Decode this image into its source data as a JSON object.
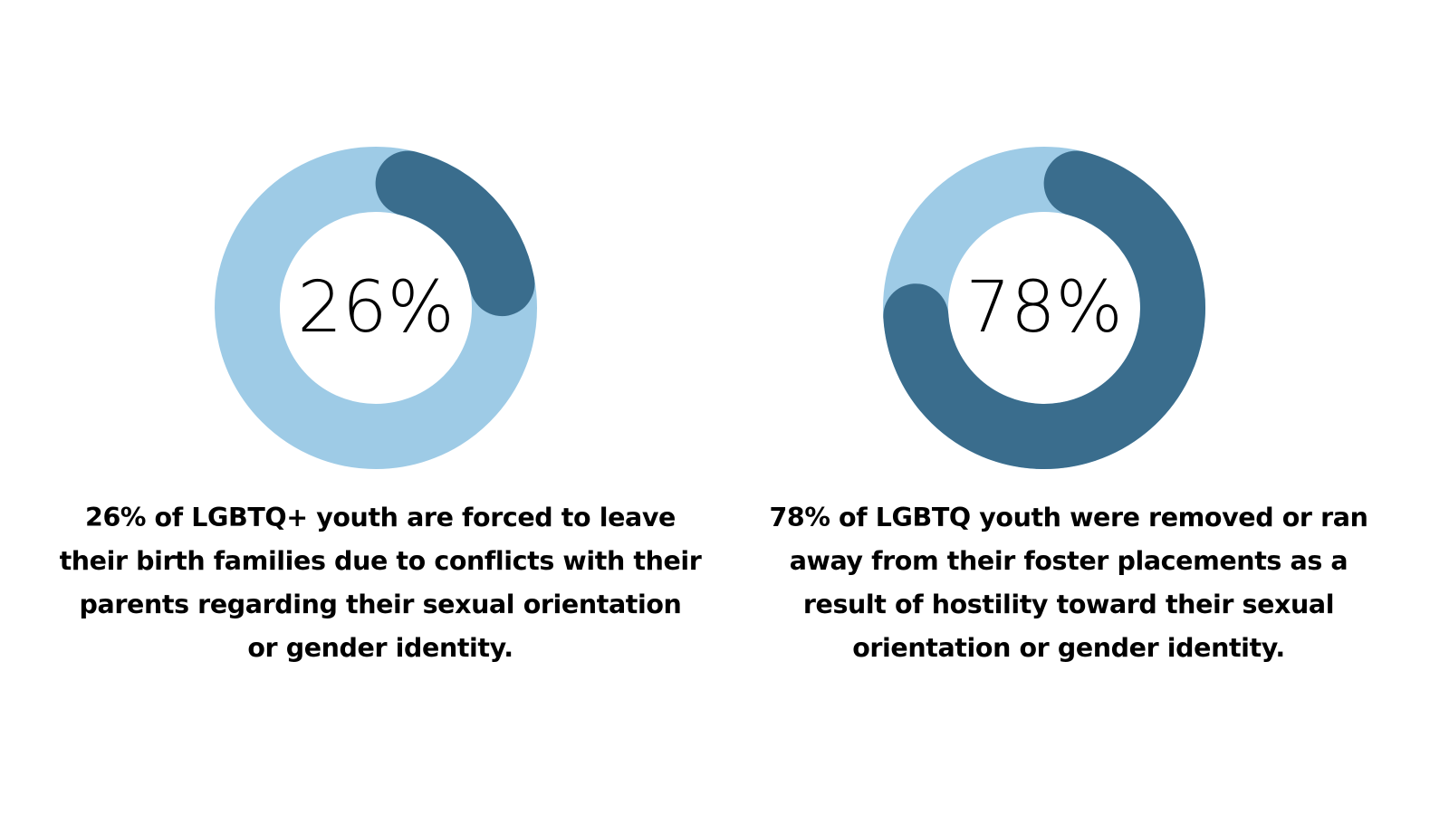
{
  "colors": {
    "background": "#ffffff",
    "track": "#9ecbe6",
    "value_arc": "#3a6d8d",
    "text": "#000000"
  },
  "chart_data": [
    {
      "type": "pie",
      "style": "donut",
      "value": 26,
      "unit": "%",
      "center_label": "26%",
      "caption_lines": [
        "26% of LGBTQ+ youth are forced to leave",
        "their birth families due to conflicts with their",
        "parents regarding their sexual orientation",
        "or gender identity."
      ]
    },
    {
      "type": "pie",
      "style": "donut",
      "value": 78,
      "unit": "%",
      "center_label": "78%",
      "caption_lines": [
        "78% of LGBTQ youth were removed or ran",
        "away from their foster placements as a",
        "result of hostility toward their sexual",
        "orientation or gender identity."
      ]
    }
  ]
}
